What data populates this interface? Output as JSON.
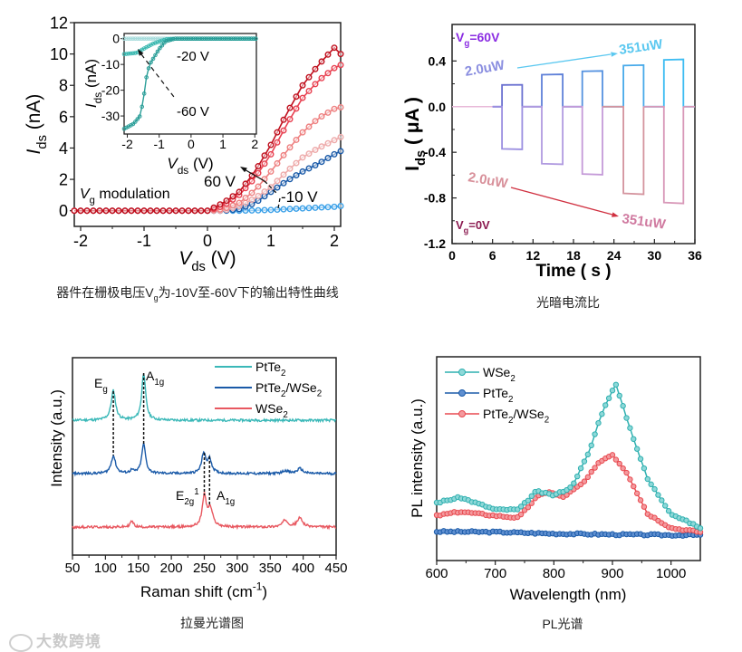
{
  "captions": {
    "c1_pre": "器件在栅极电压V",
    "c1_sub": "g",
    "c1_post": "为-10V至-60V下的输出特性曲线",
    "c2": "光暗电流比",
    "c3": "拉曼光谱图",
    "c4": "PL光谱"
  },
  "watermark": "大数跨境",
  "chart_data": [
    {
      "type": "line",
      "title": "",
      "xlabel": [
        {
          "text": "V",
          "fmt": "italic"
        },
        {
          "text": "ds",
          "fmt": "sub"
        },
        {
          "text": " (V)",
          "fmt": "normal"
        }
      ],
      "ylabel": [
        {
          "text": "I",
          "fmt": "italic"
        },
        {
          "text": "ds",
          "fmt": "sub"
        },
        {
          "text": " (nA)",
          "fmt": "normal"
        }
      ],
      "xlim": [
        -2.1,
        2.1
      ],
      "ylim": [
        -1,
        12
      ],
      "x_ticks": [
        "-2",
        "-1",
        "0",
        "1",
        "2"
      ],
      "y_ticks": [
        "0",
        "2",
        "4",
        "6",
        "8",
        "10",
        "12"
      ],
      "x": [
        0,
        0.25,
        0.5,
        0.75,
        1.0,
        1.25,
        1.5,
        1.75,
        2.0,
        2.1
      ],
      "note": "Ids = 0 for Vds < 0",
      "series": [
        {
          "name": "Vg curve 1 (light blue)",
          "color": "#3aa0e8",
          "values": [
            0,
            0,
            0,
            0.02,
            0.05,
            0.1,
            0.15,
            0.2,
            0.25,
            0.3
          ]
        },
        {
          "name": "Vg curve 2 (dark blue)",
          "color": "#1a5aa8",
          "values": [
            0,
            0,
            0.1,
            0.5,
            1.2,
            1.9,
            2.5,
            3.0,
            3.6,
            3.8
          ]
        },
        {
          "name": "Vg curve 3 (light pink)",
          "color": "#eeaaaa",
          "values": [
            0,
            0,
            0.3,
            0.8,
            1.5,
            2.5,
            3.4,
            4.0,
            4.5,
            4.7
          ]
        },
        {
          "name": "Vg curve 4 (pink)",
          "color": "#ee8080",
          "values": [
            0,
            0.1,
            0.5,
            1.3,
            2.5,
            3.8,
            5.0,
            5.9,
            6.5,
            6.6
          ]
        },
        {
          "name": "Vg curve 5 (red)",
          "color": "#e84050",
          "values": [
            0,
            0.3,
            1.0,
            2.1,
            3.6,
            5.5,
            7.2,
            8.3,
            9.1,
            9.3
          ]
        },
        {
          "name": "Vg curve 6 (dark red)",
          "color": "#c0101e",
          "values": [
            0,
            0.5,
            1.2,
            2.5,
            4.2,
            6.2,
            8.0,
            9.3,
            10.4,
            10.0
          ]
        }
      ],
      "annotations": {
        "vg_modulation": [
          {
            "text": "V",
            "fmt": "italic"
          },
          {
            "text": "g",
            "fmt": "sub"
          },
          {
            "text": " modulation",
            "fmt": "normal"
          }
        ],
        "label_60v": "60 V",
        "label_m10v": "-10 V"
      },
      "inset": {
        "xlabel": [
          {
            "text": "V",
            "fmt": "italic"
          },
          {
            "text": "ds",
            "fmt": "sub"
          },
          {
            "text": " (V)",
            "fmt": "normal"
          }
        ],
        "ylabel": [
          {
            "text": "I",
            "fmt": "italic"
          },
          {
            "text": "ds",
            "fmt": "sub"
          },
          {
            "text": " (nA)",
            "fmt": "normal"
          }
        ],
        "xlim": [
          -2.1,
          2.05
        ],
        "ylim": [
          -37,
          2
        ],
        "x_ticks": [
          "-2",
          "-1",
          "0",
          "1",
          "2"
        ],
        "y_ticks": [
          "0",
          "-10",
          "-20",
          "-30"
        ],
        "label_m20v": "-20 V",
        "label_m60v": "-60 V",
        "series": [
          {
            "name": "-60 V",
            "color": "#2a9e98",
            "x": [
              -2.1,
              -1.8,
              -1.6,
              -1.5,
              -1.4,
              -1.3,
              -1.2,
              -1.0,
              -0.8,
              -0.5,
              2.05
            ],
            "values": [
              -35,
              -33,
              -30,
              -24,
              -15,
              -10,
              -8,
              -4,
              -1,
              0,
              0
            ]
          },
          {
            "name": "-20 V",
            "color": "#3ab8b0",
            "x": [
              -2.1,
              -1.7,
              -1.5,
              -1.2,
              -0.8,
              -0.5,
              2.05
            ],
            "values": [
              -6,
              -5.5,
              -4,
              -2,
              -0.3,
              0,
              0
            ]
          },
          {
            "name": "other Vg",
            "color": "#a8dcdc",
            "x": [
              -2.1,
              2.05
            ],
            "values": [
              0,
              0
            ]
          }
        ]
      }
    },
    {
      "type": "line",
      "title": "",
      "xlabel": [
        {
          "text": "Time ( s )",
          "fmt": "normal"
        }
      ],
      "ylabel": [
        {
          "text": "I",
          "fmt": "normal"
        },
        {
          "text": "ds",
          "fmt": "sub"
        },
        {
          "text": " ( μA )",
          "fmt": "normal"
        }
      ],
      "xlim": [
        0,
        36
      ],
      "ylim": [
        -1.2,
        0.72
      ],
      "x_ticks": [
        "0",
        "6",
        "12",
        "18",
        "24",
        "30",
        "36"
      ],
      "y_ticks": [
        "0.4",
        "0.0",
        "-0.4",
        "-0.8",
        "-1.2"
      ],
      "pulses_on": [
        7.4,
        13.3,
        19.3,
        25.4,
        31.4
      ],
      "pulses_off": [
        10.4,
        16.4,
        22.3,
        28.4,
        34.3
      ],
      "series": [
        {
          "name": "Vg=60V",
          "start": 6,
          "values": [
            0.19,
            0.28,
            0.31,
            0.36,
            0.41
          ],
          "colors": [
            "#6a70d0",
            "#5e80d8",
            "#5592e0",
            "#48aaea",
            "#3cbcf2"
          ]
        },
        {
          "name": "Vg=0V",
          "start": 0,
          "values": [
            -0.37,
            -0.5,
            -0.59,
            -0.76,
            -0.84
          ],
          "colors": [
            "#9a8ee0",
            "#b09ae0",
            "#c49ad8",
            "#d4949e",
            "#d898b8"
          ]
        }
      ],
      "annotations": {
        "vg60": [
          {
            "text": "V",
            "fmt": "normal"
          },
          {
            "text": "g",
            "fmt": "sub"
          },
          {
            "text": "=60V",
            "fmt": "normal"
          }
        ],
        "vg0": [
          {
            "text": "V",
            "fmt": "normal"
          },
          {
            "text": "g",
            "fmt": "sub"
          },
          {
            "text": "=0V",
            "fmt": "normal"
          }
        ],
        "top_low": "2.0uW",
        "top_high": "351uW",
        "bottom_low": "2.0uW",
        "bottom_high": "351uW"
      },
      "colors": {
        "vg60_label": "#8a2be2",
        "vg0_label": "#8b1a50",
        "top_arrow": "#5bc8f0",
        "bottom_arrow": "#d03040"
      }
    },
    {
      "type": "line",
      "title": "",
      "xlabel": [
        {
          "text": "Raman shift (cm",
          "fmt": "normal"
        },
        {
          "text": "-1",
          "fmt": "sup"
        },
        {
          "text": ")",
          "fmt": "normal"
        }
      ],
      "ylabel": [
        {
          "text": "Intensity (a.u.)",
          "fmt": "normal"
        }
      ],
      "xlim": [
        50,
        450
      ],
      "ylim": [
        0,
        10
      ],
      "x_ticks": [
        "50",
        "100",
        "150",
        "200",
        "250",
        "300",
        "350",
        "400",
        "450"
      ],
      "legend_position": "top-right",
      "series": [
        {
          "name": [
            {
              "text": "PtTe",
              "fmt": "normal"
            },
            {
              "text": "2",
              "fmt": "sub"
            }
          ],
          "color": "#3ab8b8",
          "baseline": 6.83,
          "peaks": [
            {
              "x": 112,
              "amp": 1.5,
              "w": 4
            },
            {
              "x": 158,
              "amp": 2.4,
              "w": 3.5
            }
          ]
        },
        {
          "name": [
            {
              "text": "PtTe",
              "fmt": "normal"
            },
            {
              "text": "2",
              "fmt": "sub"
            },
            {
              "text": "/WSe",
              "fmt": "normal"
            },
            {
              "text": "2",
              "fmt": "sub"
            }
          ],
          "color": "#1a5aa8",
          "baseline": 4.13,
          "peaks": [
            {
              "x": 112,
              "amp": 0.9,
              "w": 4
            },
            {
              "x": 158,
              "amp": 1.5,
              "w": 3.5
            },
            {
              "x": 140,
              "amp": 0.15,
              "w": 3
            },
            {
              "x": 249,
              "amp": 1.0,
              "w": 3.5
            },
            {
              "x": 258,
              "amp": 0.7,
              "w": 4
            },
            {
              "x": 373,
              "amp": 0.15,
              "w": 5
            },
            {
              "x": 395,
              "amp": 0.25,
              "w": 5
            }
          ]
        },
        {
          "name": [
            {
              "text": "WSe",
              "fmt": "normal"
            },
            {
              "text": "2",
              "fmt": "sub"
            }
          ],
          "color": "#e85860",
          "baseline": 1.42,
          "peaks": [
            {
              "x": 140,
              "amp": 0.3,
              "w": 3
            },
            {
              "x": 250,
              "amp": 1.55,
              "w": 3.5
            },
            {
              "x": 259,
              "amp": 0.9,
              "w": 4.5
            },
            {
              "x": 373,
              "amp": 0.35,
              "w": 5
            },
            {
              "x": 395,
              "amp": 0.45,
              "w": 5
            }
          ]
        }
      ],
      "annotations": {
        "eg": [
          {
            "text": "E",
            "fmt": "normal"
          },
          {
            "text": "g",
            "fmt": "sub"
          }
        ],
        "a1g_top": [
          {
            "text": "A",
            "fmt": "normal"
          },
          {
            "text": "1g",
            "fmt": "sub"
          }
        ],
        "e2g": [
          {
            "text": "E",
            "fmt": "normal"
          },
          {
            "text": "2g",
            "fmt": "sub"
          },
          {
            "text": "1",
            "fmt": "sup"
          }
        ],
        "a1g_bottom": [
          {
            "text": "A",
            "fmt": "normal"
          },
          {
            "text": "1g",
            "fmt": "sub"
          }
        ]
      }
    },
    {
      "type": "line",
      "title": "",
      "xlabel": [
        {
          "text": "Wavelength (nm)",
          "fmt": "normal"
        }
      ],
      "ylabel": [
        {
          "text": "PL intensity (a.u.)",
          "fmt": "normal"
        }
      ],
      "xlim": [
        600,
        1050
      ],
      "ylim": [
        0,
        10
      ],
      "x_ticks": [
        "600",
        "700",
        "800",
        "900",
        "1000"
      ],
      "legend_position": "top-left",
      "series": [
        {
          "name": [
            {
              "text": "WSe",
              "fmt": "normal"
            },
            {
              "text": "2",
              "fmt": "sub"
            }
          ],
          "color": "#2fb0b0",
          "fill": "#8ed8d8",
          "x": [
            600,
            640,
            670,
            700,
            740,
            770,
            800,
            830,
            860,
            880,
            905,
            930,
            960,
            1000,
            1050
          ],
          "values": [
            2.84,
            3.1,
            2.8,
            2.5,
            2.5,
            3.4,
            3.2,
            3.6,
            5.3,
            7.1,
            8.7,
            6.5,
            4.0,
            2.3,
            1.6
          ]
        },
        {
          "name": [
            {
              "text": "PtTe",
              "fmt": "normal"
            },
            {
              "text": "2",
              "fmt": "sub"
            }
          ],
          "color": "#1a5aa8",
          "fill": "#5f8fd0",
          "x": [
            600,
            700,
            800,
            900,
            1000,
            1050
          ],
          "values": [
            1.42,
            1.4,
            1.32,
            1.28,
            1.25,
            1.25
          ]
        },
        {
          "name": [
            {
              "text": "PtTe",
              "fmt": "normal"
            },
            {
              "text": "2",
              "fmt": "sub"
            },
            {
              "text": "/WSe",
              "fmt": "normal"
            },
            {
              "text": "2",
              "fmt": "sub"
            }
          ],
          "color": "#e84a50",
          "fill": "#f49a9e",
          "x": [
            600,
            640,
            670,
            700,
            740,
            770,
            790,
            815,
            850,
            880,
            900,
            925,
            960,
            1000,
            1050
          ],
          "values": [
            2.2,
            2.4,
            2.3,
            2.2,
            2.1,
            3.1,
            3.4,
            3.1,
            3.8,
            4.9,
            5.2,
            4.3,
            2.3,
            1.6,
            1.4
          ]
        }
      ]
    }
  ]
}
